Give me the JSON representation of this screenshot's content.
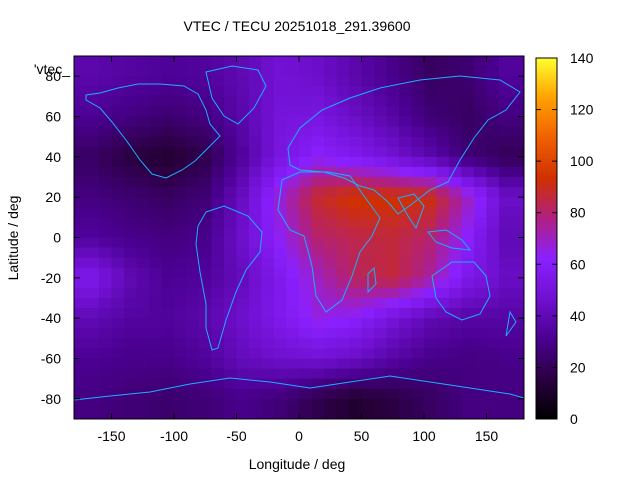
{
  "chart_data": {
    "type": "heatmap",
    "title": "VTEC / TECU 20251018_291.39600",
    "xlabel": "Longitude / deg",
    "ylabel": "Latitude / deg",
    "key_label": "'vtec_",
    "xlim": [
      -180,
      180
    ],
    "ylim": [
      -90,
      90
    ],
    "xticks": [
      -150,
      -100,
      -50,
      0,
      50,
      100,
      150
    ],
    "yticks": [
      -80,
      -60,
      -40,
      -20,
      0,
      20,
      40,
      60,
      80
    ],
    "colorbar": {
      "min": 0,
      "max": 140,
      "ticks": [
        0,
        20,
        40,
        60,
        80,
        100,
        120,
        140
      ]
    },
    "palette": [
      "#000000",
      "#2a0040",
      "#4a0090",
      "#7010d0",
      "#8a20ff",
      "#b02080",
      "#d03000",
      "#f06000",
      "#ffa000",
      "#ffff30"
    ],
    "grid": false,
    "field": {
      "lon": [
        -165,
        -135,
        -105,
        -75,
        -45,
        -15,
        15,
        45,
        75,
        105,
        135,
        165
      ],
      "lat": [
        80,
        60,
        40,
        20,
        0,
        -20,
        -40,
        -60,
        -80
      ],
      "values": [
        [
          38,
          35,
          33,
          34,
          40,
          48,
          45,
          38,
          30,
          22,
          25,
          34
        ],
        [
          32,
          28,
          25,
          28,
          38,
          50,
          52,
          44,
          36,
          26,
          22,
          28
        ],
        [
          22,
          15,
          12,
          18,
          34,
          52,
          62,
          56,
          48,
          38,
          26,
          20
        ],
        [
          28,
          25,
          22,
          26,
          44,
          68,
          88,
          95,
          94,
          92,
          70,
          45
        ],
        [
          34,
          30,
          28,
          30,
          46,
          64,
          80,
          84,
          86,
          80,
          62,
          40
        ],
        [
          55,
          40,
          32,
          34,
          42,
          56,
          70,
          82,
          86,
          74,
          55,
          44
        ],
        [
          40,
          35,
          34,
          38,
          46,
          56,
          66,
          62,
          50,
          40,
          36,
          36
        ],
        [
          32,
          30,
          30,
          34,
          42,
          46,
          48,
          44,
          36,
          30,
          28,
          30
        ],
        [
          28,
          26,
          24,
          26,
          30,
          26,
          18,
          12,
          16,
          22,
          28,
          28
        ]
      ]
    }
  }
}
